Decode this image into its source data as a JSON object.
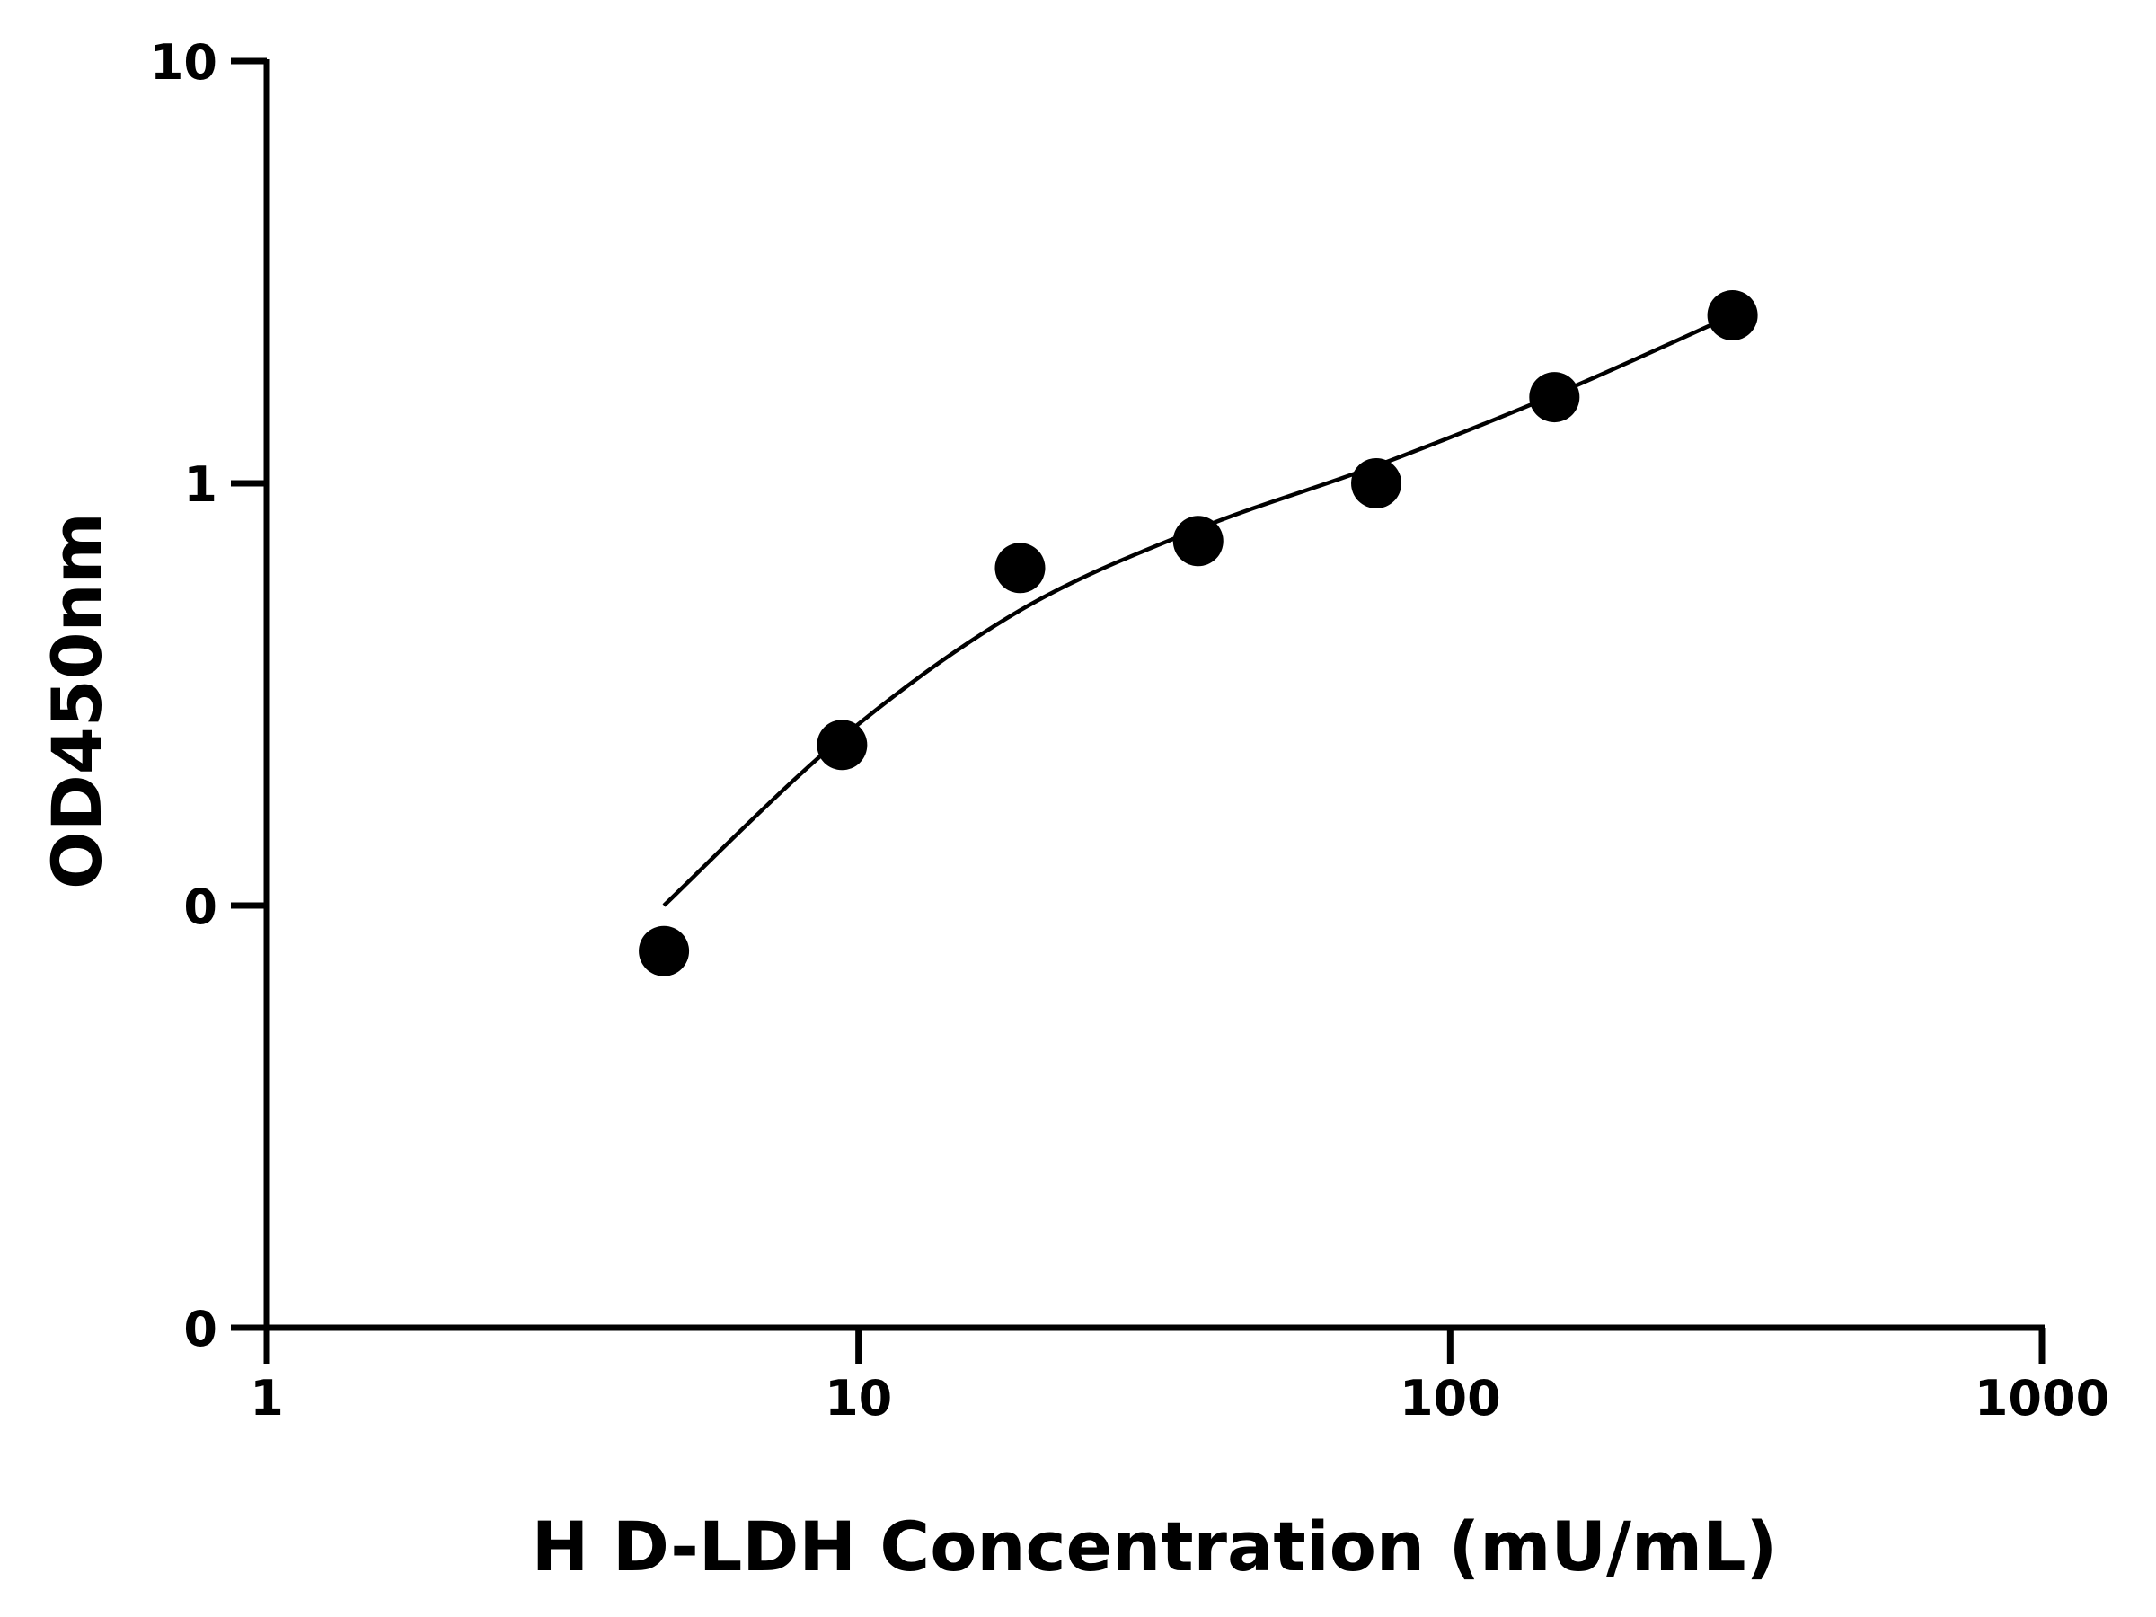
{
  "chart_data": {
    "type": "scatter",
    "title": "",
    "xlabel": "H D-LDH Concentration (mU/mL)",
    "ylabel": "OD450nm",
    "x_scale": "log",
    "y_scale": "log",
    "xlim": [
      1,
      1000
    ],
    "ylim": [
      0.01,
      10
    ],
    "x_ticks": [
      {
        "value": 1,
        "label": "1"
      },
      {
        "value": 10,
        "label": "10"
      },
      {
        "value": 100,
        "label": "100"
      },
      {
        "value": 1000,
        "label": "1000"
      }
    ],
    "y_ticks": [
      {
        "value": 0.01,
        "label": "0"
      },
      {
        "value": 0.1,
        "label": "0"
      },
      {
        "value": 1,
        "label": "1"
      },
      {
        "value": 10,
        "label": "10"
      }
    ],
    "grid": false,
    "legend": "none",
    "series": [
      {
        "points": [
          {
            "x": 4.69,
            "y": 0.078
          },
          {
            "x": 9.38,
            "y": 0.24
          },
          {
            "x": 18.75,
            "y": 0.63
          },
          {
            "x": 37.5,
            "y": 0.73
          },
          {
            "x": 75,
            "y": 1.0
          },
          {
            "x": 150,
            "y": 1.6
          },
          {
            "x": 300,
            "y": 2.5
          }
        ]
      }
    ],
    "fit_curve": [
      {
        "x": 4.69,
        "y": 0.1
      },
      {
        "x": 9.38,
        "y": 0.25
      },
      {
        "x": 18.75,
        "y": 0.5
      },
      {
        "x": 37.5,
        "y": 0.78
      },
      {
        "x": 75,
        "y": 1.1
      },
      {
        "x": 150,
        "y": 1.62
      },
      {
        "x": 300,
        "y": 2.5
      }
    ],
    "colors": {
      "marker": "#000000",
      "line": "#000000",
      "axis": "#000000"
    }
  }
}
